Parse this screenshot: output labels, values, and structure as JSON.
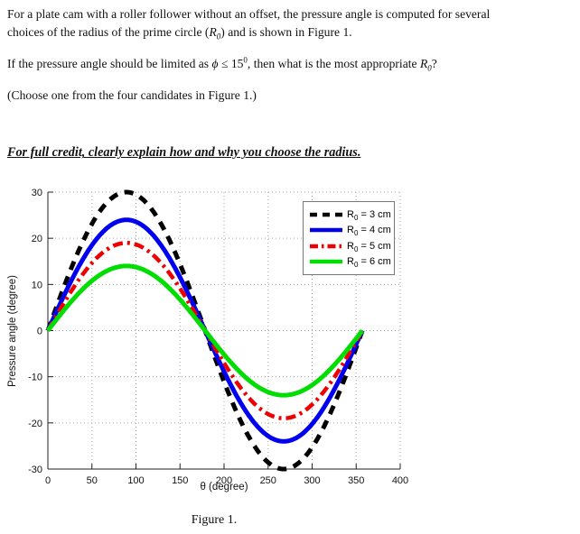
{
  "document": {
    "p1": {
      "line1": "For a plate cam with a roller follower without an offset, the pressure angle is computed for several",
      "line2a": "choices of the radius of the prime circle (",
      "r": "R",
      "sub": "0",
      "line2b": ") and is shown in Figure 1."
    },
    "p2": {
      "a": "If the pressure angle should be limited as ",
      "phi": "ϕ",
      "b": " ≤ 15",
      "sup": "0",
      "c": ", then what is the most appropriate ",
      "r": "R",
      "sub": "0",
      "d": "?"
    },
    "p3": "(Choose one from the four candidates in Figure 1.)",
    "p4": "For full credit, clearly explain how and why you choose the radius.",
    "caption": "Figure 1."
  },
  "chart_data": {
    "type": "line",
    "title": "",
    "xlabel": "θ (degree)",
    "ylabel": "Pressure angle (degree)",
    "xlim": [
      0,
      400
    ],
    "ylim": [
      -30,
      30
    ],
    "xticks": [
      0,
      50,
      100,
      150,
      200,
      250,
      300,
      350,
      400
    ],
    "yticks": [
      30,
      20,
      10,
      0,
      -10,
      -20,
      -30
    ],
    "grid": "dotted gray at every tick, box off (solid left and bottom axes only)",
    "curve_shape": "each curve is one full sinusoidal period of the pressure angle over cam angle theta = 0 to 357 degrees; zero crossings at 0, ~178 and ~357 degrees",
    "theta_end": 357,
    "legend_position": "top-right inside plot",
    "series": [
      {
        "id": "r0-3cm",
        "label_prefix": "R",
        "label_sub": "0",
        "label_rest": " = 3 cm",
        "color": "#000000",
        "linestyle": "dashed",
        "linewidth": 5,
        "amplitude": 30,
        "peak": {
          "theta": 89,
          "value": 30
        },
        "trough": {
          "theta": 268,
          "value": -30
        }
      },
      {
        "id": "r0-4cm",
        "label_prefix": "R",
        "label_sub": "0",
        "label_rest": " = 4 cm",
        "color": "#0000ee",
        "linestyle": "solid",
        "linewidth": 5,
        "amplitude": 24,
        "peak": {
          "theta": 89,
          "value": 24
        },
        "trough": {
          "theta": 268,
          "value": -24
        }
      },
      {
        "id": "r0-5cm",
        "label_prefix": "R",
        "label_sub": "0",
        "label_rest": " = 5 cm",
        "color": "#ee0000",
        "linestyle": "dashdot",
        "linewidth": 4.5,
        "amplitude": 19,
        "peak": {
          "theta": 89,
          "value": 19
        },
        "trough": {
          "theta": 268,
          "value": -19
        }
      },
      {
        "id": "r0-6cm",
        "label_prefix": "R",
        "label_sub": "0",
        "label_rest": " = 6 cm",
        "color": "#00dd00",
        "linestyle": "solid",
        "linewidth": 5,
        "amplitude": 14,
        "peak": {
          "theta": 89,
          "value": 14
        },
        "trough": {
          "theta": 268,
          "value": -14
        }
      }
    ]
  }
}
